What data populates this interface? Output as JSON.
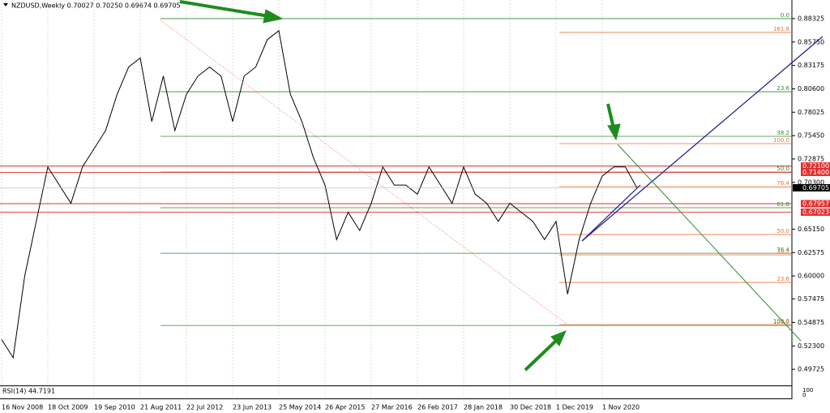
{
  "chart_data": {
    "type": "line",
    "title": "NZDUSD,Weekly  0.70027 0.70250 0.69674 0.69705",
    "categories": [
      "16 Nov 2008",
      null,
      null,
      null,
      "18 Oct 2009",
      null,
      null,
      null,
      "19 Sep 2010",
      null,
      null,
      null,
      "21 Aug 2011",
      null,
      null,
      null,
      "22 Jul 2012",
      null,
      null,
      null,
      "23 Jun 2013",
      null,
      null,
      null,
      "25 May 2014",
      null,
      null,
      null,
      "26 Apr 2015",
      null,
      null,
      null,
      "27 Mar 2016",
      null,
      null,
      null,
      "26 Feb 2017",
      null,
      null,
      null,
      "28 Jan 2018",
      null,
      null,
      null,
      "30 Dec 2018",
      null,
      null,
      null,
      "1 Dec 2019",
      null,
      null,
      null,
      "1 Nov 2020",
      null,
      null,
      null
    ],
    "series": [
      {
        "color": "#000000",
        "values": [
          0.53,
          0.51,
          0.6,
          0.66,
          0.72,
          0.7,
          0.68,
          0.72,
          0.74,
          0.76,
          0.8,
          0.83,
          0.84,
          0.77,
          0.82,
          0.76,
          0.8,
          0.82,
          0.83,
          0.82,
          0.77,
          0.82,
          0.83,
          0.86,
          0.87,
          0.8,
          0.77,
          0.73,
          0.7,
          0.64,
          0.67,
          0.65,
          0.68,
          0.72,
          0.7,
          0.7,
          0.69,
          0.72,
          0.7,
          0.68,
          0.72,
          0.69,
          0.68,
          0.66,
          0.68,
          0.67,
          0.66,
          0.64,
          0.66,
          0.58,
          0.64,
          0.68,
          0.71,
          0.72,
          0.72,
          0.69705
        ]
      }
    ],
    "ylim": [
      0.4795,
      0.8993
    ],
    "yticks": [
      0.88325,
      {
        "value": 0.8575,
        "label": "0.85750"
      },
      0.83175,
      {
        "value": 0.806,
        "label": "0.80600"
      },
      0.78025,
      {
        "value": 0.7545,
        "label": "0.75450"
      },
      0.72875,
      {
        "value": 0.703,
        "label": "0.70300"
      },
      {
        "value": 0.6515,
        "label": "0.65150"
      },
      0.62575,
      {
        "value": 0.6,
        "label": "0.60000"
      },
      0.57475,
      0.54875,
      {
        "value": 0.523,
        "label": "0.52300"
      },
      0.49725
    ],
    "fib_green": [
      {
        "value": 0.8833,
        "label": "0.0"
      },
      {
        "value": 0.8028,
        "label": "23.6"
      },
      {
        "value": 0.7537,
        "label": "38.2"
      },
      {
        "value": 0.7144,
        "label": "50.0"
      },
      {
        "value": 0.6751,
        "label": "61.8"
      },
      {
        "value": 0.625,
        "label": "76.4"
      },
      {
        "value": 0.5455,
        "label": "100.0"
      }
    ],
    "fib_orange": [
      {
        "value": 0.8681,
        "label": "161.8"
      },
      {
        "value": 0.7457,
        "label": "100.0"
      },
      {
        "value": 0.6983,
        "label": "76.4"
      },
      {
        "value": 0.6456,
        "label": "50.0"
      },
      {
        "value": 0.6232,
        "label": "38.2"
      },
      {
        "value": 0.5929,
        "label": "23.6"
      },
      {
        "value": 0.5465,
        "label": "100.0"
      }
    ],
    "price_levels": [
      {
        "value": 0.721,
        "label": "0.72100"
      },
      {
        "value": 0.714,
        "label": "0.71400"
      },
      0.67957,
      0.67023
    ],
    "current_price": 0.69705,
    "rsi_label": "RSI(14) 44.7191",
    "rsi_ticks": [
      100,
      0
    ]
  }
}
